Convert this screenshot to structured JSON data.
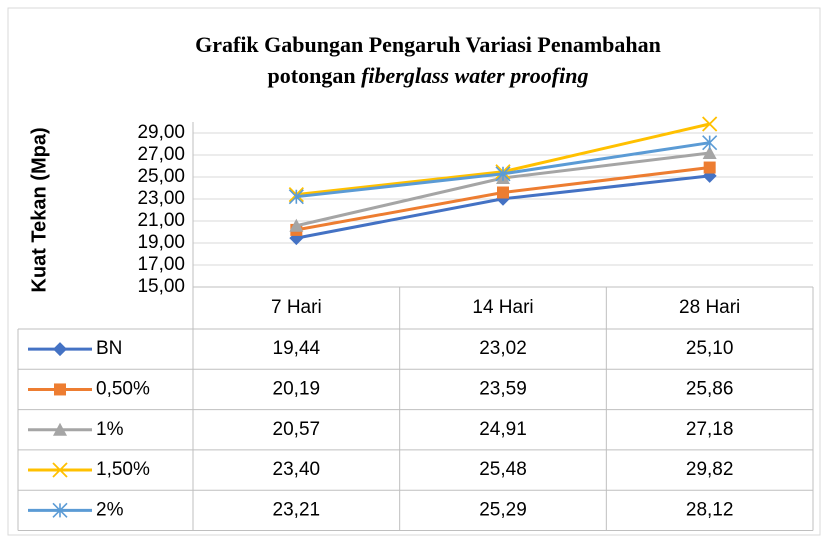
{
  "chart_data": {
    "type": "line",
    "title": [
      "Grafik Gabungan Pengaruh Variasi Penambahan",
      "potongan",
      "fiberglass water proofing"
    ],
    "ylabel": "Kuat Tekan (Mpa)",
    "categories": [
      "7 Hari",
      "14 Hari",
      "28 Hari"
    ],
    "series": [
      {
        "name": "BN",
        "color": "#4472c4",
        "marker": "diamond",
        "values": [
          19.44,
          23.02,
          25.1
        ],
        "value_labels": [
          "19,44",
          "23,02",
          "25,10"
        ]
      },
      {
        "name": "0,50%",
        "color": "#ed7d31",
        "marker": "square",
        "values": [
          20.19,
          23.59,
          25.86
        ],
        "value_labels": [
          "20,19",
          "23,59",
          "25,86"
        ]
      },
      {
        "name": "1%",
        "color": "#a5a5a5",
        "marker": "triangle",
        "values": [
          20.57,
          24.91,
          27.18
        ],
        "value_labels": [
          "20,57",
          "24,91",
          "27,18"
        ]
      },
      {
        "name": "1,50%",
        "color": "#ffc000",
        "marker": "x",
        "values": [
          23.4,
          25.48,
          29.82
        ],
        "value_labels": [
          "23,40",
          "25,48",
          "29,82"
        ]
      },
      {
        "name": "2%",
        "color": "#5b9bd5",
        "marker": "star",
        "values": [
          23.21,
          25.29,
          28.12
        ],
        "value_labels": [
          "23,21",
          "25,29",
          "28,12"
        ]
      }
    ],
    "ylim": [
      15,
      30
    ],
    "yticks": [
      {
        "value": 15,
        "label": "15,00"
      },
      {
        "value": 17,
        "label": "17,00"
      },
      {
        "value": 19,
        "label": "19,00"
      },
      {
        "value": 21,
        "label": "21,00"
      },
      {
        "value": 23,
        "label": "23,00"
      },
      {
        "value": 25,
        "label": "25,00"
      },
      {
        "value": 27,
        "label": "27,00"
      },
      {
        "value": 29,
        "label": "29,00"
      }
    ],
    "grid": true
  }
}
